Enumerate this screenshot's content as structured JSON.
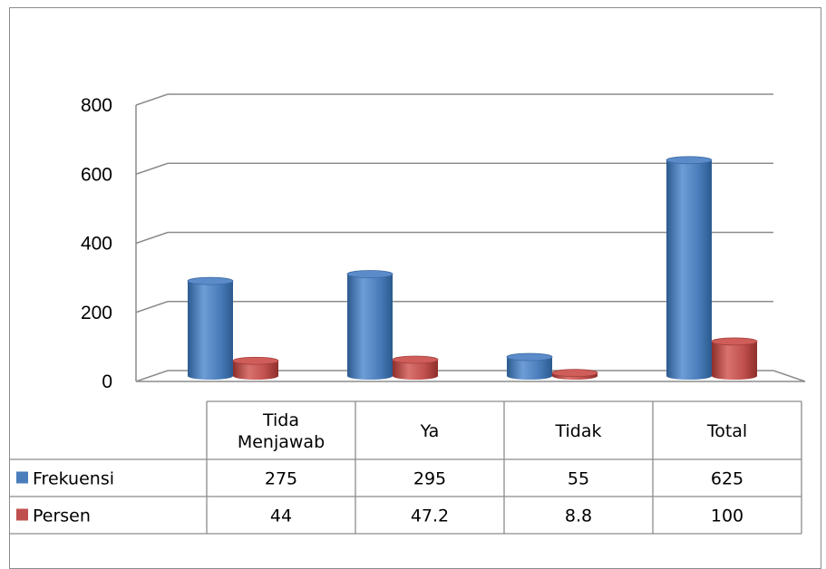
{
  "chart_data": {
    "type": "bar",
    "categories": [
      "Tida Menjawab",
      "Ya",
      "Tidak",
      "Total"
    ],
    "category_lines": [
      [
        "Tida",
        "Menjawab"
      ],
      [
        "Ya"
      ],
      [
        "Tidak"
      ],
      [
        "Total"
      ]
    ],
    "series": [
      {
        "name": "Frekuensi",
        "values": [
          275,
          295,
          55,
          625
        ],
        "value_labels": [
          "275",
          "295",
          "55",
          "625"
        ],
        "color": "#4a7ebb"
      },
      {
        "name": "Persen",
        "values": [
          44,
          47.2,
          8.8,
          100
        ],
        "value_labels": [
          "44",
          "47.2",
          "8.8",
          "100"
        ],
        "color": "#c0504d"
      }
    ],
    "ylim": [
      0,
      800
    ],
    "yticks": [
      0,
      200,
      400,
      600,
      800
    ],
    "grid": true,
    "style": "3d-cylinder",
    "legend": "data-table"
  }
}
